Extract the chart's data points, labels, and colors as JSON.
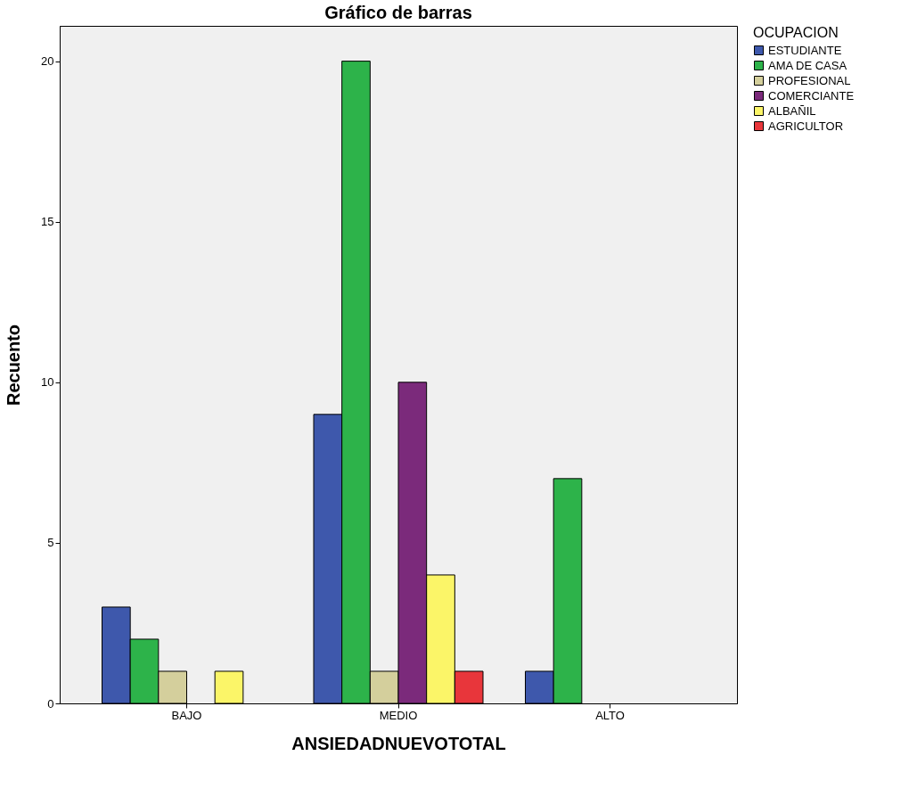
{
  "chart_data": {
    "type": "bar",
    "title": "Gráfico de barras",
    "xlabel": "ANSIEDADNUEVOTOTAL",
    "ylabel": "Recuento",
    "legend_title": "OCUPACION",
    "legend": "top right",
    "grid": false,
    "categories": [
      "BAJO",
      "MEDIO",
      "ALTO"
    ],
    "ylim": [
      0,
      21.1
    ],
    "yticks": [
      0,
      5,
      10,
      15,
      20
    ],
    "series": [
      {
        "name": "ESTUDIANTE",
        "color": "#3e58ac",
        "values": [
          3,
          9,
          1
        ]
      },
      {
        "name": "AMA DE CASA",
        "color": "#2db34a",
        "values": [
          2,
          20,
          7
        ]
      },
      {
        "name": "PROFESIONAL",
        "color": "#d4cf9c",
        "values": [
          1,
          1,
          null
        ]
      },
      {
        "name": "COMERCIANTE",
        "color": "#7b2a7b",
        "values": [
          null,
          10,
          null
        ]
      },
      {
        "name": "ALBAÑIL",
        "color": "#fbf568",
        "values": [
          1,
          4,
          null
        ]
      },
      {
        "name": "AGRICULTOR",
        "color": "#e8363b",
        "values": [
          null,
          1,
          null
        ]
      }
    ]
  }
}
